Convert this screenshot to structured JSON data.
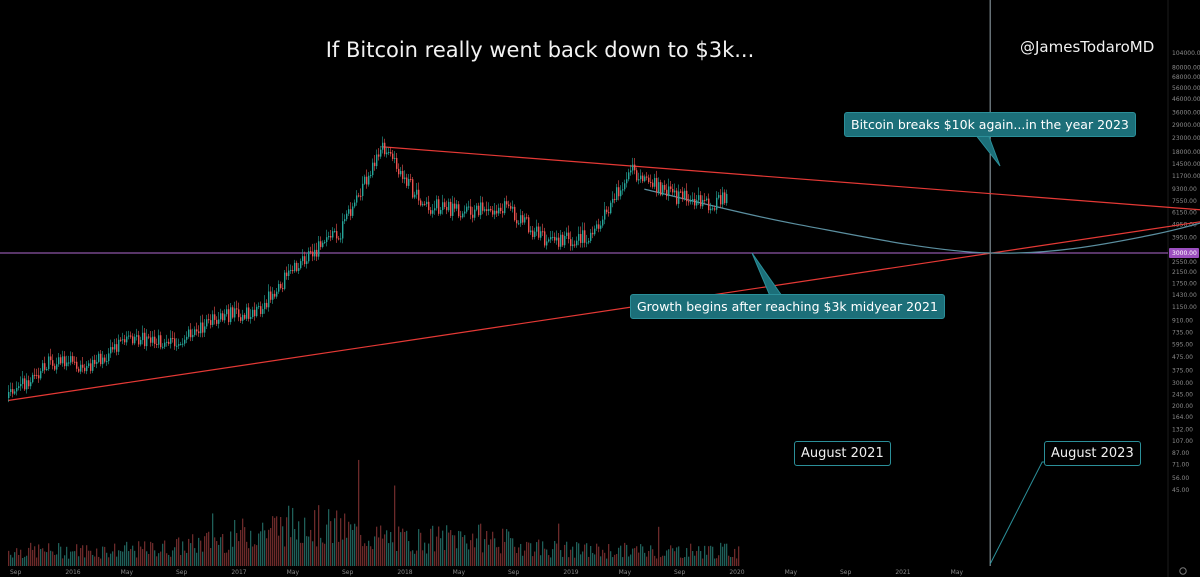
{
  "chart": {
    "title": "If Bitcoin really went back down to $3k...",
    "watermark": "@JamesTodaroMD",
    "price_line_label": "3000.00",
    "annotations": {
      "breakout": "Bitcoin breaks $10k again...in the year 2023",
      "growth": "Growth begins after reaching $3k midyear 2021",
      "aug2021": "August 2021",
      "aug2023": "August 2023"
    },
    "colors": {
      "background": "#000000",
      "candle_up": "#26a69a",
      "candle_down": "#ef5350",
      "trendline": "#e53935",
      "projection_curve": "#5b8fa0",
      "support_line": "#b06ad0",
      "vertical_line": "#9aa8b0",
      "callout": "#1c6f79"
    }
  },
  "chart_data": {
    "type": "line",
    "scale": "log",
    "x_ticks": [
      "Sep",
      "2016",
      "May",
      "Sep",
      "2017",
      "May",
      "Sep",
      "2018",
      "May",
      "Sep",
      "2019",
      "May",
      "Sep",
      "2020",
      "May",
      "Sep",
      "2021",
      "May"
    ],
    "y_ticks": [
      104000,
      80000,
      68000,
      56000,
      46000,
      36000,
      29000,
      23000,
      18000,
      14500,
      11700,
      9300,
      7550,
      6150,
      4950,
      3950,
      3000,
      2550,
      2150,
      1750,
      1430,
      1150,
      910,
      735,
      595,
      475,
      375,
      300,
      245,
      200,
      164,
      132,
      107,
      87,
      71,
      56,
      45
    ],
    "support_level": 3000,
    "price_history": [
      {
        "x": "2015-09",
        "y": 230
      },
      {
        "x": "2015-12",
        "y": 430
      },
      {
        "x": "2016-03",
        "y": 415
      },
      {
        "x": "2016-06",
        "y": 680
      },
      {
        "x": "2016-09",
        "y": 605
      },
      {
        "x": "2016-12",
        "y": 960
      },
      {
        "x": "2017-03",
        "y": 1080
      },
      {
        "x": "2017-06",
        "y": 2500
      },
      {
        "x": "2017-09",
        "y": 4300
      },
      {
        "x": "2017-12",
        "y": 19700
      },
      {
        "x": "2018-03",
        "y": 7000
      },
      {
        "x": "2018-06",
        "y": 6300
      },
      {
        "x": "2018-09",
        "y": 6600
      },
      {
        "x": "2018-12",
        "y": 3600
      },
      {
        "x": "2019-03",
        "y": 4000
      },
      {
        "x": "2019-06",
        "y": 13000
      },
      {
        "x": "2019-09",
        "y": 8300
      },
      {
        "x": "2019-12",
        "y": 7200
      },
      {
        "x": "2020-01",
        "y": 8600
      }
    ],
    "projection": [
      {
        "x": "2019-07",
        "y": 9300
      },
      {
        "x": "2020-06",
        "y": 5000
      },
      {
        "x": "2021-08",
        "y": 3000
      },
      {
        "x": "2022-08",
        "y": 4200
      },
      {
        "x": "2023-08",
        "y": 10000
      }
    ],
    "trendlines": [
      {
        "name": "",
        "from": {
          "x": "2017-12",
          "y": 19700
        },
        "to": {
          "x": "2023-03",
          "y": 6000
        }
      },
      {
        "name": "",
        "from": {
          "x": "2015-09",
          "y": 220
        },
        "to": {
          "x": "2023-03",
          "y": 6000
        }
      }
    ],
    "vertical_markers": [
      "2021-08",
      "2023-08"
    ],
    "xlabel": "",
    "ylabel": ""
  }
}
